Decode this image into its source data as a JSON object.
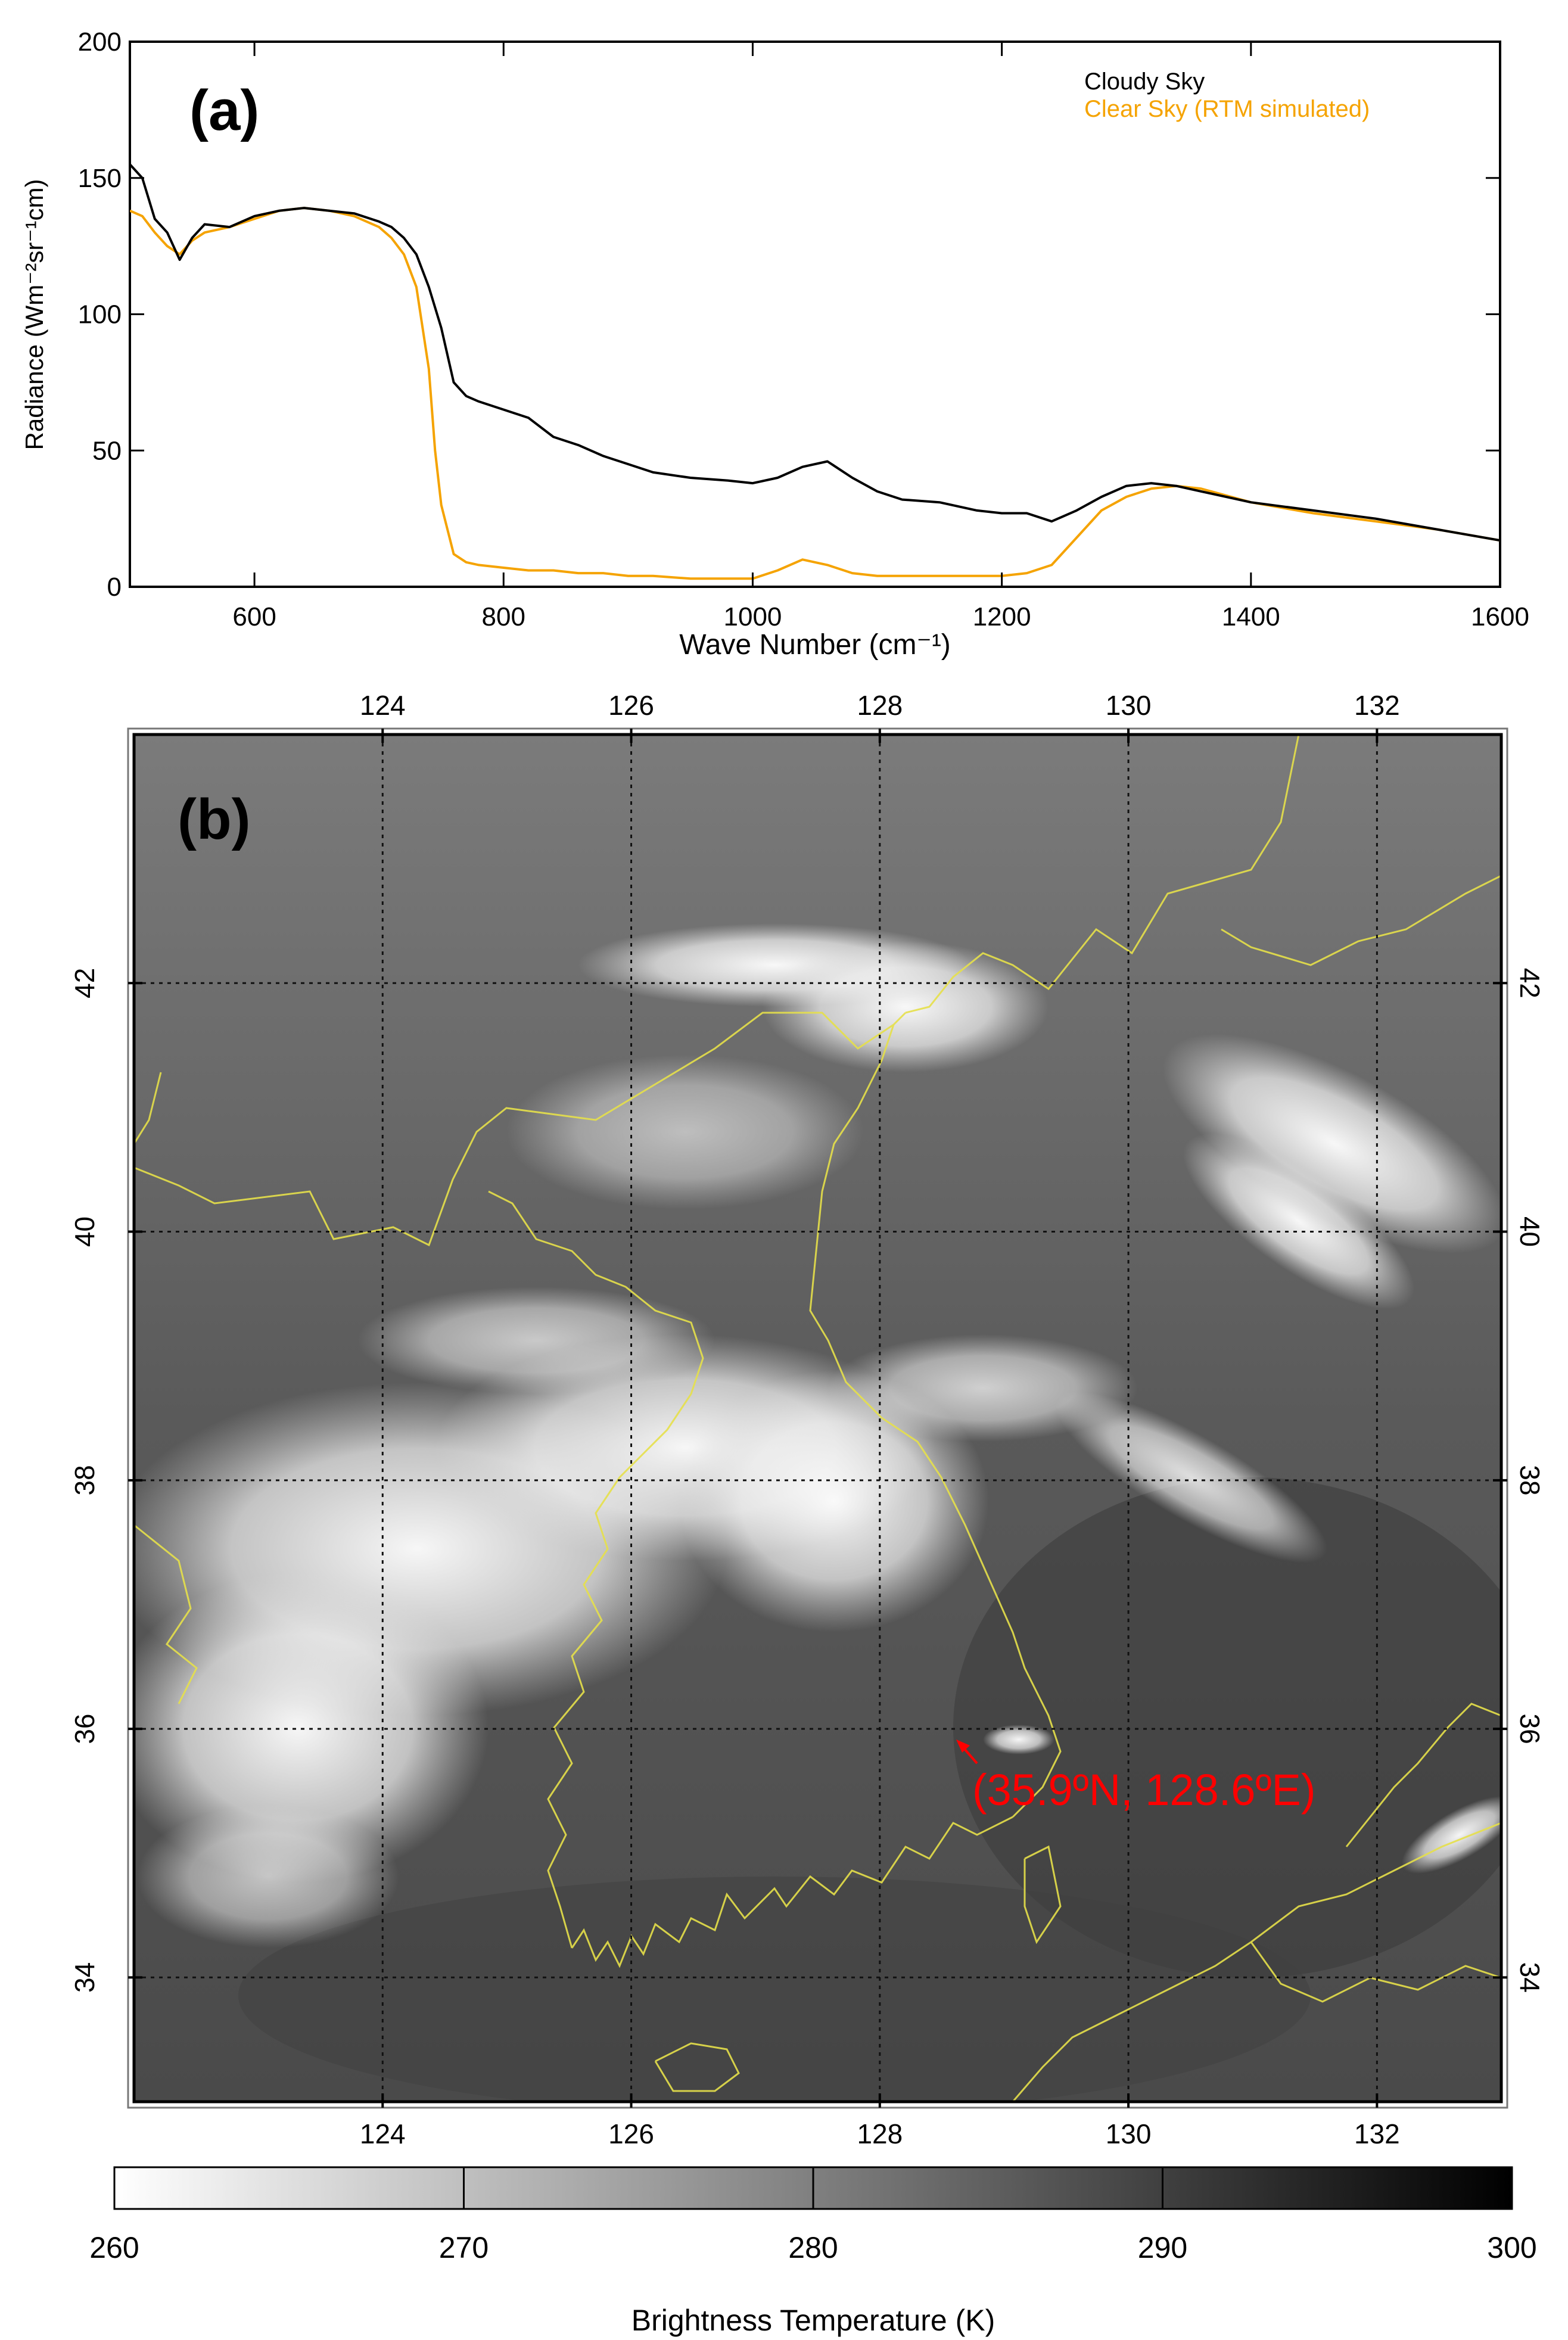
{
  "chart_data": [
    {
      "panel": "(a)",
      "type": "line",
      "xlabel": "Wave Number (cm⁻¹)",
      "ylabel": "Radiance (Wm⁻²sr⁻¹cm)",
      "xlim": [
        500,
        1600
      ],
      "ylim": [
        0,
        200
      ],
      "xticks": [
        600,
        800,
        1000,
        1200,
        1400,
        1600
      ],
      "yticks": [
        0,
        50,
        100,
        150,
        200
      ],
      "legend_position": "top-right",
      "series": [
        {
          "name": "Cloudy Sky",
          "color": "#000000",
          "x": [
            500,
            510,
            520,
            530,
            540,
            550,
            560,
            580,
            600,
            620,
            640,
            660,
            680,
            700,
            710,
            720,
            730,
            740,
            750,
            760,
            770,
            780,
            800,
            820,
            840,
            860,
            880,
            900,
            920,
            950,
            980,
            1000,
            1020,
            1040,
            1060,
            1080,
            1100,
            1120,
            1150,
            1180,
            1200,
            1220,
            1240,
            1260,
            1280,
            1300,
            1320,
            1340,
            1360,
            1400,
            1450,
            1500,
            1550,
            1600
          ],
          "y": [
            155,
            150,
            135,
            130,
            120,
            128,
            133,
            132,
            136,
            138,
            139,
            138,
            137,
            134,
            132,
            128,
            122,
            110,
            95,
            75,
            70,
            68,
            65,
            62,
            55,
            52,
            48,
            45,
            42,
            40,
            39,
            38,
            40,
            44,
            46,
            40,
            35,
            32,
            31,
            28,
            27,
            27,
            24,
            28,
            33,
            37,
            38,
            37,
            35,
            31,
            28,
            25,
            21,
            17
          ]
        },
        {
          "name": "Clear Sky (RTM simulated)",
          "color": "#f5a300",
          "x": [
            500,
            510,
            520,
            530,
            540,
            550,
            560,
            580,
            600,
            620,
            640,
            660,
            680,
            700,
            710,
            720,
            730,
            740,
            745,
            750,
            760,
            770,
            780,
            800,
            820,
            840,
            860,
            880,
            900,
            920,
            950,
            980,
            1000,
            1020,
            1040,
            1060,
            1080,
            1100,
            1120,
            1150,
            1180,
            1200,
            1220,
            1240,
            1260,
            1280,
            1300,
            1320,
            1340,
            1360,
            1400,
            1450,
            1500,
            1550,
            1600
          ],
          "y": [
            138,
            136,
            130,
            125,
            122,
            127,
            130,
            132,
            135,
            138,
            139,
            138,
            136,
            132,
            128,
            122,
            110,
            80,
            50,
            30,
            12,
            9,
            8,
            7,
            6,
            6,
            5,
            5,
            4,
            4,
            3,
            3,
            3,
            6,
            10,
            8,
            5,
            4,
            4,
            4,
            4,
            4,
            5,
            8,
            18,
            28,
            33,
            36,
            37,
            36,
            31,
            27,
            24,
            21,
            17
          ]
        }
      ]
    },
    {
      "panel": "(b)",
      "type": "heatmap",
      "xlabel": "",
      "ylabel": "",
      "lon_range": [
        122,
        133
      ],
      "lat_range": [
        33,
        44
      ],
      "xticks": [
        124,
        126,
        128,
        130,
        132
      ],
      "yticks": [
        34,
        36,
        38,
        40,
        42
      ],
      "grid": "dotted",
      "colorbar": {
        "label": "Brightness Temperature (K)",
        "ticks": [
          260,
          270,
          280,
          290,
          300
        ],
        "colors": [
          "#ffffff",
          "#000000"
        ]
      },
      "annotation": {
        "text": "(35.9ºN, 128.6ºE)",
        "lat": 35.9,
        "lon": 128.6,
        "color": "#ff0000"
      }
    }
  ]
}
